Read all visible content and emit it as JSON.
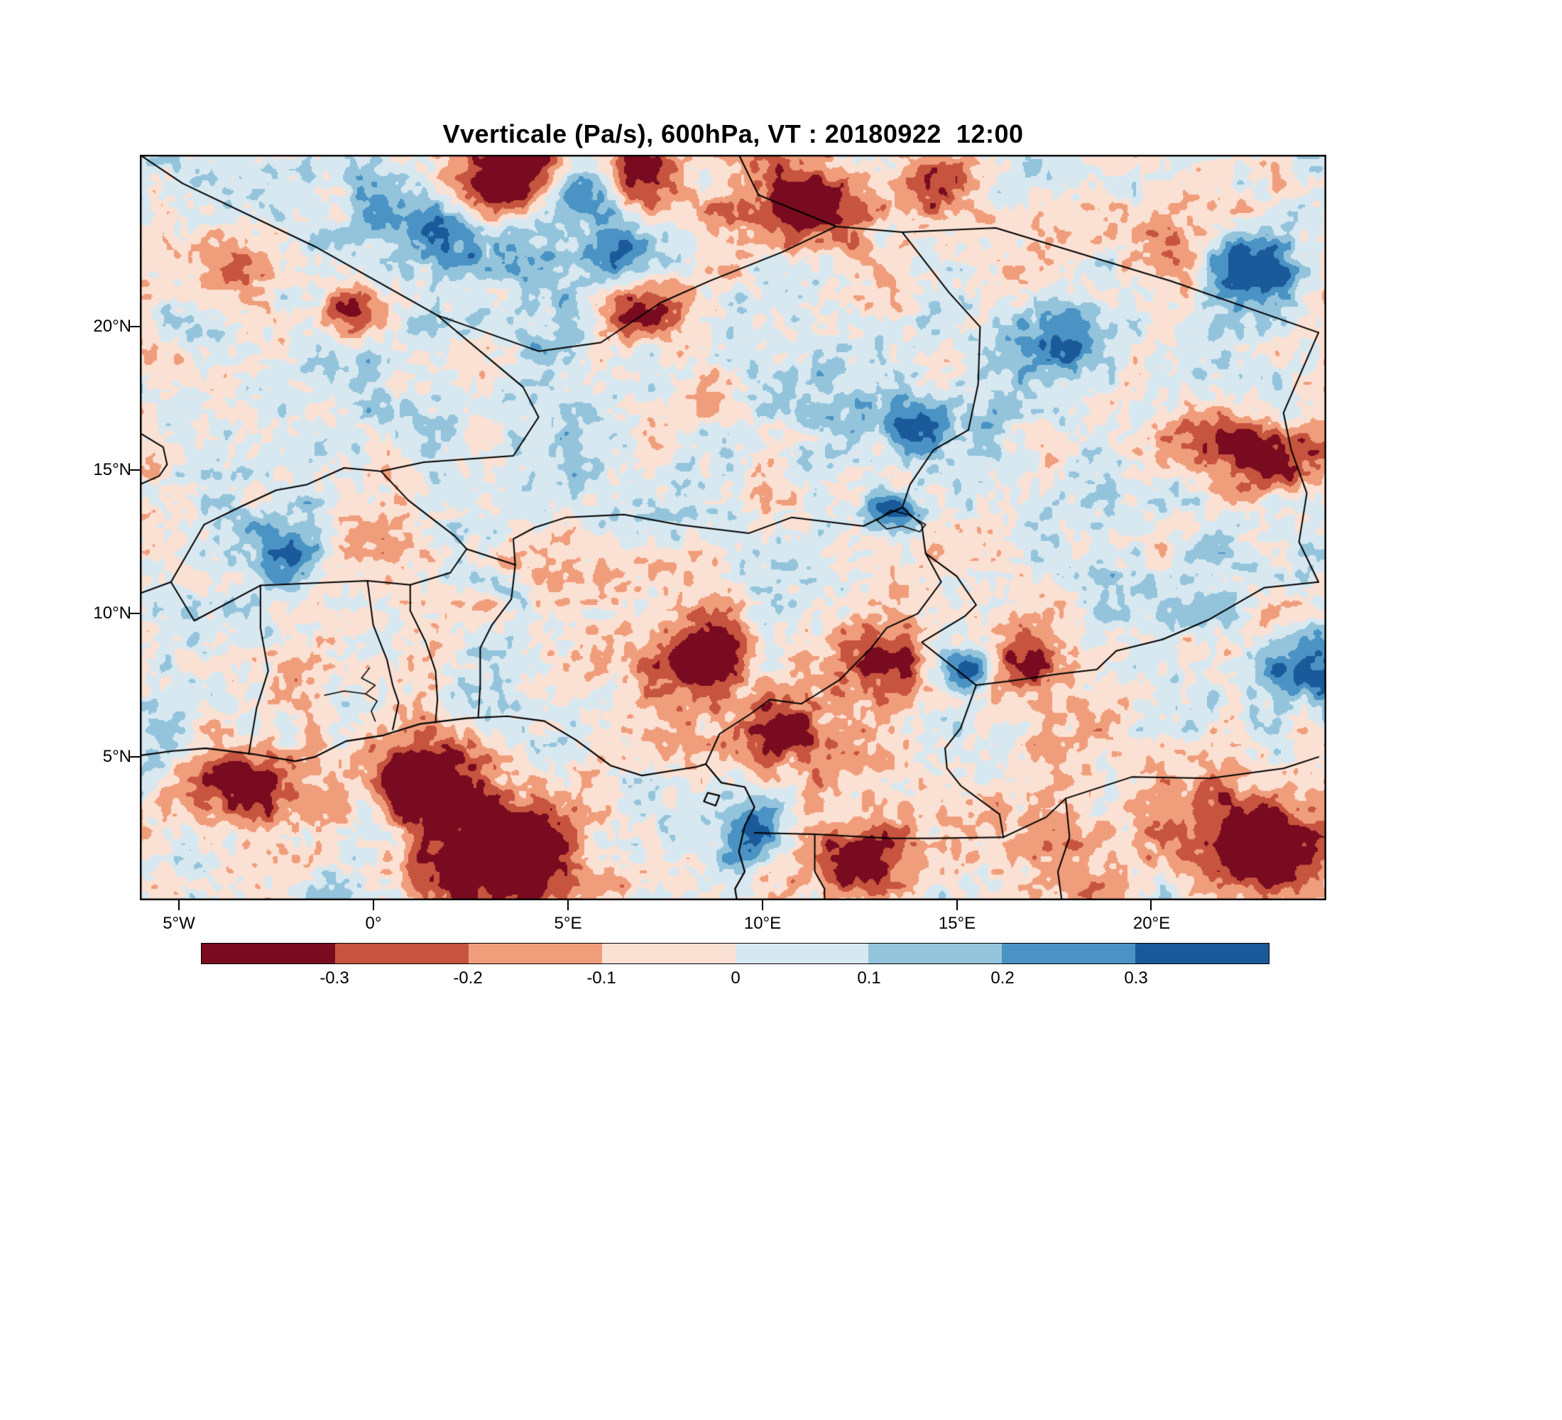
{
  "title": "Vverticale (Pa/s), 600hPa, VT : 20180922  12:00",
  "chart_data": {
    "type": "heatmap",
    "subtype": "filled_contour_weather_map",
    "title": "Vverticale (Pa/s), 600hPa, VT : 20180922  12:00",
    "variable": "Vverticale",
    "units": "Pa/s",
    "level": "600hPa",
    "valid_time": "20180922 12:00",
    "grid": false,
    "extent": {
      "lon_min": -6,
      "lon_max": 24.5,
      "lat_min": 0,
      "lat_max": 26
    },
    "x_ticks": [
      {
        "value": -5,
        "label": "5°W"
      },
      {
        "value": 0,
        "label": "0°"
      },
      {
        "value": 5,
        "label": "5°E"
      },
      {
        "value": 10,
        "label": "10°E"
      },
      {
        "value": 15,
        "label": "15°E"
      },
      {
        "value": 20,
        "label": "20°E"
      }
    ],
    "y_ticks": [
      {
        "value": 20,
        "label": "20°N"
      },
      {
        "value": 15,
        "label": "15°N"
      },
      {
        "value": 10,
        "label": "10°N"
      },
      {
        "value": 5,
        "label": "5°N"
      }
    ],
    "colorbar": {
      "orientation": "horizontal",
      "levels": [
        -0.3,
        -0.2,
        -0.1,
        0,
        0.1,
        0.2,
        0.3
      ],
      "labels": [
        "-0.3",
        "-0.2",
        "-0.1",
        "0",
        "0.1",
        "0.2",
        "0.3"
      ],
      "colors": [
        "#790b20",
        "#c6543e",
        "#f09d7c",
        "#fbe1d3",
        "#d8e8f1",
        "#94c4dc",
        "#4a93c4",
        "#1a5a9a"
      ],
      "outline_color": "#000000"
    },
    "field_summary": {
      "background_pattern": "fine-grained alternating weak negative (pale red) and positive (pale blue) vertical-velocity cells",
      "anomaly_centers": [
        {
          "lon": 3.5,
          "lat": 25.3,
          "amp": -0.5,
          "sigma": 1.1
        },
        {
          "lon": 6.6,
          "lat": 25.2,
          "amp": -0.45,
          "sigma": 0.8
        },
        {
          "lon": 11.0,
          "lat": 24.3,
          "amp": -0.42,
          "sigma": 1.0
        },
        {
          "lon": 14.3,
          "lat": 25.2,
          "amp": -0.35,
          "sigma": 0.7
        },
        {
          "lon": -3.3,
          "lat": 22.3,
          "amp": -0.3,
          "sigma": 1.0
        },
        {
          "lon": -0.5,
          "lat": 20.5,
          "amp": -0.4,
          "sigma": 0.6
        },
        {
          "lon": 6.8,
          "lat": 20.6,
          "amp": -0.45,
          "sigma": 0.8
        },
        {
          "lon": 20.8,
          "lat": 22.4,
          "amp": -0.5,
          "sigma": 1.0
        },
        {
          "lon": 23.2,
          "lat": 15.3,
          "amp": -0.45,
          "sigma": 0.9
        },
        {
          "lon": 21.6,
          "lat": 16.1,
          "amp": -0.35,
          "sigma": 0.8
        },
        {
          "lon": 8.6,
          "lat": 8.6,
          "amp": -0.4,
          "sigma": 0.8
        },
        {
          "lon": 13.0,
          "lat": 8.4,
          "amp": -0.4,
          "sigma": 0.9
        },
        {
          "lon": 16.8,
          "lat": 8.2,
          "amp": -0.3,
          "sigma": 0.7
        },
        {
          "lon": 3.3,
          "lat": 1.7,
          "amp": -0.55,
          "sigma": 1.5
        },
        {
          "lon": 1.2,
          "lat": 4.4,
          "amp": -0.4,
          "sigma": 1.1
        },
        {
          "lon": -3.6,
          "lat": 4.0,
          "amp": -0.3,
          "sigma": 1.0
        },
        {
          "lon": 10.6,
          "lat": 5.8,
          "amp": -0.35,
          "sigma": 0.8
        },
        {
          "lon": 23.0,
          "lat": 2.0,
          "amp": -0.5,
          "sigma": 1.1
        },
        {
          "lon": 12.5,
          "lat": 1.2,
          "amp": -0.35,
          "sigma": 0.9
        },
        {
          "lon": 5.6,
          "lat": 24.8,
          "amp": 0.45,
          "sigma": 0.65
        },
        {
          "lon": 2.1,
          "lat": 23.2,
          "amp": 0.3,
          "sigma": 0.8
        },
        {
          "lon": 6.3,
          "lat": 22.6,
          "amp": 0.3,
          "sigma": 0.8
        },
        {
          "lon": 21.9,
          "lat": 22.2,
          "amp": 0.55,
          "sigma": 0.9
        },
        {
          "lon": 18.0,
          "lat": 19.8,
          "amp": 0.28,
          "sigma": 0.9
        },
        {
          "lon": 13.9,
          "lat": 16.4,
          "amp": 0.3,
          "sigma": 0.7
        },
        {
          "lon": 13.3,
          "lat": 13.6,
          "amp": 0.4,
          "sigma": 0.5
        },
        {
          "lon": -2.1,
          "lat": 12.1,
          "amp": 0.32,
          "sigma": 0.8
        },
        {
          "lon": 15.2,
          "lat": 8.1,
          "amp": 0.4,
          "sigma": 0.5
        },
        {
          "lon": 9.6,
          "lat": 2.3,
          "amp": 0.38,
          "sigma": 0.7
        },
        {
          "lon": 24.0,
          "lat": 8.0,
          "amp": 0.35,
          "sigma": 0.8
        }
      ]
    },
    "map_overlay": {
      "line_color": "#000000",
      "borders": [
        [
          [
            -6,
            26
          ],
          [
            -4.9,
            25
          ],
          [
            -1.5,
            22.8
          ],
          [
            1.65,
            20.4
          ]
        ],
        [
          [
            1.65,
            20.4
          ],
          [
            4.25,
            19.15
          ],
          [
            5.85,
            19.45
          ],
          [
            7.4,
            20.85
          ],
          [
            8.65,
            21.6
          ],
          [
            10.5,
            22.6
          ],
          [
            11.9,
            23.5
          ],
          [
            13.6,
            23.3
          ]
        ],
        [
          [
            9.4,
            26
          ],
          [
            9.9,
            24.6
          ],
          [
            11.9,
            23.5
          ]
        ],
        [
          [
            13.6,
            23.3
          ],
          [
            16,
            23.45
          ],
          [
            20.5,
            21.6
          ],
          [
            24.3,
            19.8
          ]
        ],
        [
          [
            13.6,
            23.3
          ],
          [
            14.8,
            21.2
          ],
          [
            15.6,
            20
          ],
          [
            15.55,
            18
          ],
          [
            15.3,
            16.4
          ],
          [
            14.4,
            15.7
          ],
          [
            13.8,
            14.5
          ],
          [
            13.6,
            13.7
          ]
        ],
        [
          [
            3.65,
            11.7
          ],
          [
            3.6,
            12.6
          ],
          [
            4.15,
            13
          ],
          [
            4.95,
            13.35
          ],
          [
            6.45,
            13.45
          ],
          [
            7.85,
            13.1
          ],
          [
            9.65,
            12.8
          ],
          [
            10.75,
            13.35
          ],
          [
            12.6,
            13.05
          ],
          [
            13.35,
            13.55
          ],
          [
            13.6,
            13.7
          ]
        ],
        [
          [
            1.65,
            20.4
          ],
          [
            3.85,
            17.9
          ],
          [
            4.25,
            16.85
          ],
          [
            3.6,
            15.5
          ],
          [
            1.3,
            15.28
          ],
          [
            0.2,
            14.96
          ],
          [
            -0.75,
            15.08
          ],
          [
            -1.7,
            14.5
          ],
          [
            -2.5,
            14.3
          ],
          [
            -3.45,
            13.7
          ],
          [
            -4.35,
            13.1
          ]
        ],
        [
          [
            0.2,
            14.96
          ],
          [
            0.9,
            13.95
          ],
          [
            2.1,
            12.7
          ],
          [
            2.4,
            12.25
          ],
          [
            3.65,
            11.7
          ]
        ],
        [
          [
            -5.2,
            11.1
          ],
          [
            -4.6,
            9.75
          ],
          [
            -2.9,
            10.98
          ],
          [
            -0.15,
            11.14
          ],
          [
            0.95,
            11
          ],
          [
            1.98,
            11.42
          ],
          [
            2.4,
            12.25
          ]
        ],
        [
          [
            -4.35,
            13.1
          ],
          [
            -5.2,
            11.1
          ],
          [
            -6,
            10.7
          ]
        ],
        [
          [
            -3.2,
            5.1
          ],
          [
            -3,
            6.7
          ],
          [
            -2.7,
            8
          ],
          [
            -2.9,
            9.5
          ],
          [
            -2.9,
            10.98
          ]
        ],
        [
          [
            0.5,
            5.95
          ],
          [
            0.65,
            6.9
          ],
          [
            0.5,
            7.5
          ],
          [
            0.35,
            8.4
          ],
          [
            0,
            9.6
          ],
          [
            -0.15,
            11.14
          ]
        ],
        [
          [
            1.6,
            6.2
          ],
          [
            1.65,
            7
          ],
          [
            1.6,
            8
          ],
          [
            1.35,
            9
          ],
          [
            0.95,
            10.1
          ],
          [
            0.95,
            11
          ]
        ],
        [
          [
            2.7,
            6.4
          ],
          [
            2.75,
            7.5
          ],
          [
            2.75,
            8.8
          ],
          [
            3.05,
            9.6
          ],
          [
            3.55,
            10.5
          ],
          [
            3.65,
            11.7
          ]
        ],
        [
          [
            8.55,
            4.75
          ],
          [
            8.9,
            5.8
          ],
          [
            9.7,
            6.5
          ],
          [
            10.2,
            7
          ],
          [
            11,
            6.85
          ],
          [
            11.3,
            7.1
          ],
          [
            12,
            7.7
          ],
          [
            12.8,
            8.8
          ],
          [
            13.2,
            9.5
          ],
          [
            14,
            10
          ],
          [
            14.6,
            11.1
          ],
          [
            14.2,
            12.1
          ],
          [
            14.1,
            13.1
          ],
          [
            13.6,
            13.7
          ]
        ],
        [
          [
            14.2,
            12.1
          ],
          [
            15,
            11.3
          ],
          [
            15.5,
            10.3
          ],
          [
            15.2,
            9.9
          ],
          [
            14.1,
            9
          ],
          [
            15.5,
            7.5
          ],
          [
            16.4,
            7.65
          ],
          [
            17.65,
            7.9
          ],
          [
            18.6,
            8.05
          ],
          [
            19.1,
            8.7
          ],
          [
            20.3,
            9.1
          ],
          [
            21.5,
            9.8
          ],
          [
            22.9,
            10.9
          ],
          [
            24.3,
            11.1
          ]
        ],
        [
          [
            15.5,
            7.5
          ],
          [
            15.1,
            6
          ],
          [
            14.7,
            5.3
          ],
          [
            14.75,
            4.6
          ],
          [
            15.1,
            4
          ],
          [
            16.1,
            3
          ],
          [
            16.2,
            2.2
          ]
        ],
        [
          [
            9.8,
            2.35
          ],
          [
            11.35,
            2.3
          ],
          [
            13.3,
            2.16
          ],
          [
            14.3,
            2.16
          ],
          [
            16.2,
            2.2
          ]
        ],
        [
          [
            11.35,
            2.3
          ],
          [
            11.35,
            1
          ],
          [
            11.6,
            0.4
          ],
          [
            11.6,
            0
          ]
        ],
        [
          [
            24.3,
            19.8
          ],
          [
            23.4,
            17
          ],
          [
            23.6,
            15.7
          ],
          [
            24,
            14.2
          ],
          [
            23.8,
            12.5
          ],
          [
            24.3,
            11.1
          ]
        ],
        [
          [
            16.2,
            2.2
          ],
          [
            17.3,
            2.9
          ],
          [
            17.8,
            3.55
          ],
          [
            19.5,
            4.3
          ],
          [
            21.5,
            4.25
          ],
          [
            23.4,
            4.6
          ],
          [
            24.3,
            5
          ]
        ],
        [
          [
            17.8,
            3.55
          ],
          [
            17.9,
            2.2
          ],
          [
            17.6,
            1
          ],
          [
            17.7,
            0
          ]
        ],
        [
          [
            -6,
            16.3
          ],
          [
            -5.4,
            15.8
          ],
          [
            -5.3,
            15.2
          ],
          [
            -5.5,
            14.8
          ],
          [
            -6,
            14.5
          ]
        ]
      ],
      "coastlines": [
        [
          [
            -6,
            5.05
          ],
          [
            -5.2,
            5.2
          ],
          [
            -4.3,
            5.3
          ],
          [
            -3.1,
            5.1
          ],
          [
            -2,
            4.85
          ],
          [
            -1.5,
            5
          ],
          [
            -0.7,
            5.55
          ],
          [
            0.25,
            5.75
          ],
          [
            1.2,
            6.15
          ],
          [
            2.4,
            6.35
          ],
          [
            3.45,
            6.42
          ],
          [
            4.4,
            6.25
          ],
          [
            5.2,
            5.6
          ],
          [
            5.5,
            5.3
          ],
          [
            6.1,
            4.7
          ],
          [
            6.9,
            4.35
          ],
          [
            7.6,
            4.5
          ],
          [
            8.3,
            4.65
          ],
          [
            8.55,
            4.75
          ],
          [
            8.95,
            4.1
          ],
          [
            9.55,
            3.95
          ],
          [
            9.8,
            3.25
          ],
          [
            9.55,
            2.6
          ],
          [
            9.4,
            1.7
          ],
          [
            9.55,
            1
          ],
          [
            9.3,
            0.4
          ],
          [
            9.35,
            0
          ]
        ],
        [
          [
            8.5,
            3.45
          ],
          [
            8.6,
            3.75
          ],
          [
            8.9,
            3.65
          ],
          [
            8.8,
            3.3
          ],
          [
            8.5,
            3.45
          ]
        ]
      ],
      "lakes": [
        [
          [
            0.05,
            6.25
          ],
          [
            -0.05,
            6.6
          ],
          [
            0.1,
            6.95
          ],
          [
            -0.2,
            7.2
          ],
          [
            0.05,
            7.5
          ],
          [
            -0.3,
            7.75
          ],
          [
            -0.1,
            8.1
          ]
        ],
        [
          [
            -0.2,
            7.2
          ],
          [
            -0.75,
            7.3
          ],
          [
            -1.25,
            7.15
          ]
        ],
        [
          [
            12.95,
            13.25
          ],
          [
            13.3,
            13.6
          ],
          [
            13.75,
            13.45
          ],
          [
            14.2,
            13.1
          ],
          [
            14.05,
            12.85
          ],
          [
            13.6,
            13.05
          ],
          [
            13.2,
            12.95
          ],
          [
            12.95,
            13.25
          ]
        ]
      ]
    }
  }
}
